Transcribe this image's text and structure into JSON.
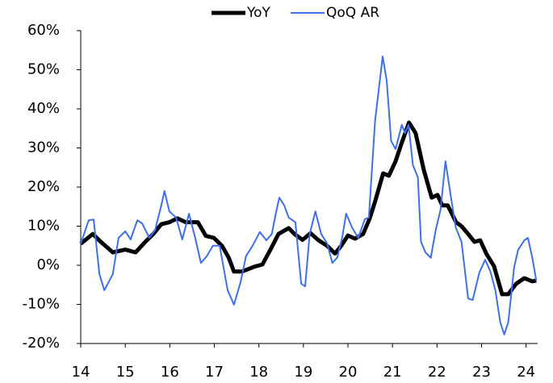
{
  "chart_data": {
    "type": "line",
    "series": [
      {
        "name": "YoY",
        "color": "#000000",
        "x": [
          14.0,
          14.27,
          14.45,
          14.72,
          15.0,
          15.23,
          15.45,
          15.63,
          15.81,
          15.99,
          16.17,
          16.36,
          16.63,
          16.81,
          16.99,
          17.17,
          17.32,
          17.44,
          17.62,
          17.89,
          18.08,
          18.26,
          18.44,
          18.67,
          18.8,
          18.98,
          19.16,
          19.34,
          19.53,
          19.71,
          19.85,
          20.0,
          20.16,
          20.34,
          20.49,
          20.61,
          20.79,
          20.92,
          21.07,
          21.19,
          21.37,
          21.52,
          21.7,
          21.88,
          22.01,
          22.12,
          22.24,
          22.43,
          22.55,
          22.7,
          22.84,
          22.97,
          23.11,
          23.28,
          23.46,
          23.6,
          23.78,
          23.96,
          24.14,
          24.23
        ],
        "values": [
          5.5,
          8,
          6,
          3.3,
          4,
          3.3,
          6,
          8,
          10.5,
          11,
          12,
          11,
          11,
          7.5,
          7,
          5,
          2,
          -1.6,
          -1.6,
          -0.4,
          0.2,
          4,
          8,
          9.5,
          8,
          6.5,
          8.2,
          6.4,
          5,
          3,
          5,
          7.6,
          6.8,
          8,
          12,
          16.3,
          23.5,
          22.9,
          26.6,
          30.7,
          36.5,
          33.8,
          24.5,
          17.3,
          18,
          15.3,
          15.3,
          11,
          10,
          8,
          6,
          6.4,
          2.9,
          -0.2,
          -7.4,
          -7.4,
          -4.7,
          -3.3,
          -4.1,
          -3.9
        ]
      },
      {
        "name": "QoQ AR",
        "color": "#3f6fe6",
        "x": [
          14.0,
          14.18,
          14.29,
          14.42,
          14.53,
          14.72,
          14.85,
          15.0,
          15.12,
          15.27,
          15.38,
          15.54,
          15.67,
          15.81,
          15.88,
          15.99,
          16.14,
          16.28,
          16.43,
          16.57,
          16.7,
          16.83,
          16.97,
          17.12,
          17.3,
          17.44,
          17.59,
          17.71,
          17.86,
          18.02,
          18.17,
          18.29,
          18.38,
          18.46,
          18.57,
          18.67,
          18.82,
          18.95,
          19.04,
          19.14,
          19.27,
          19.4,
          19.53,
          19.65,
          19.76,
          19.87,
          19.96,
          20.09,
          20.23,
          20.38,
          20.47,
          20.61,
          20.78,
          20.87,
          20.97,
          21.07,
          21.21,
          21.28,
          21.36,
          21.46,
          21.57,
          21.64,
          21.74,
          21.86,
          21.97,
          22.08,
          22.19,
          22.3,
          22.42,
          22.55,
          22.7,
          22.8,
          22.95,
          23.08,
          23.2,
          23.31,
          23.42,
          23.51,
          23.6,
          23.73,
          23.82,
          23.96,
          24.04,
          24.14,
          24.23
        ],
        "values": [
          5.5,
          11.5,
          11.7,
          -2.3,
          -6.4,
          -2.3,
          7,
          8.7,
          6.6,
          11.5,
          10.7,
          7,
          9,
          15.3,
          19,
          13.8,
          12.2,
          6.6,
          13.2,
          7,
          0.6,
          2.3,
          5,
          5,
          -6.4,
          -10.1,
          -4.3,
          2.3,
          5,
          8.5,
          6.4,
          8,
          13.2,
          17.3,
          15.3,
          12.2,
          11,
          -4.7,
          -5.4,
          8,
          13.8,
          8,
          5.6,
          0.6,
          2,
          7,
          13.2,
          9.7,
          7,
          11.8,
          12.2,
          36.9,
          53.4,
          47.2,
          31.8,
          29.7,
          35.9,
          33.8,
          35.9,
          25.6,
          22.5,
          6,
          3.3,
          1.9,
          9,
          14.2,
          26.6,
          18.4,
          9.7,
          6,
          -8.5,
          -8.9,
          -1.9,
          1.4,
          -1.6,
          -6.4,
          -14.6,
          -17.7,
          -14.6,
          -0.6,
          3.9,
          6.4,
          7,
          1.9,
          -3.9
        ]
      }
    ],
    "xlim": [
      14,
      24.26
    ],
    "xticks": [
      14,
      15,
      16,
      17,
      18,
      19,
      20,
      21,
      22,
      23,
      24
    ],
    "ylim": [
      -20,
      60
    ],
    "yticks": [
      {
        "value": -20,
        "label": "-20%"
      },
      {
        "value": -10,
        "label": "-10%"
      },
      {
        "value": 0,
        "label": "0%"
      },
      {
        "value": 10,
        "label": "10%"
      },
      {
        "value": 20,
        "label": "20%"
      },
      {
        "value": 30,
        "label": "30%"
      },
      {
        "value": 40,
        "label": "40%"
      },
      {
        "value": 50,
        "label": "50%"
      },
      {
        "value": 60,
        "label": "60%"
      }
    ],
    "grid": false,
    "legend": "top"
  }
}
